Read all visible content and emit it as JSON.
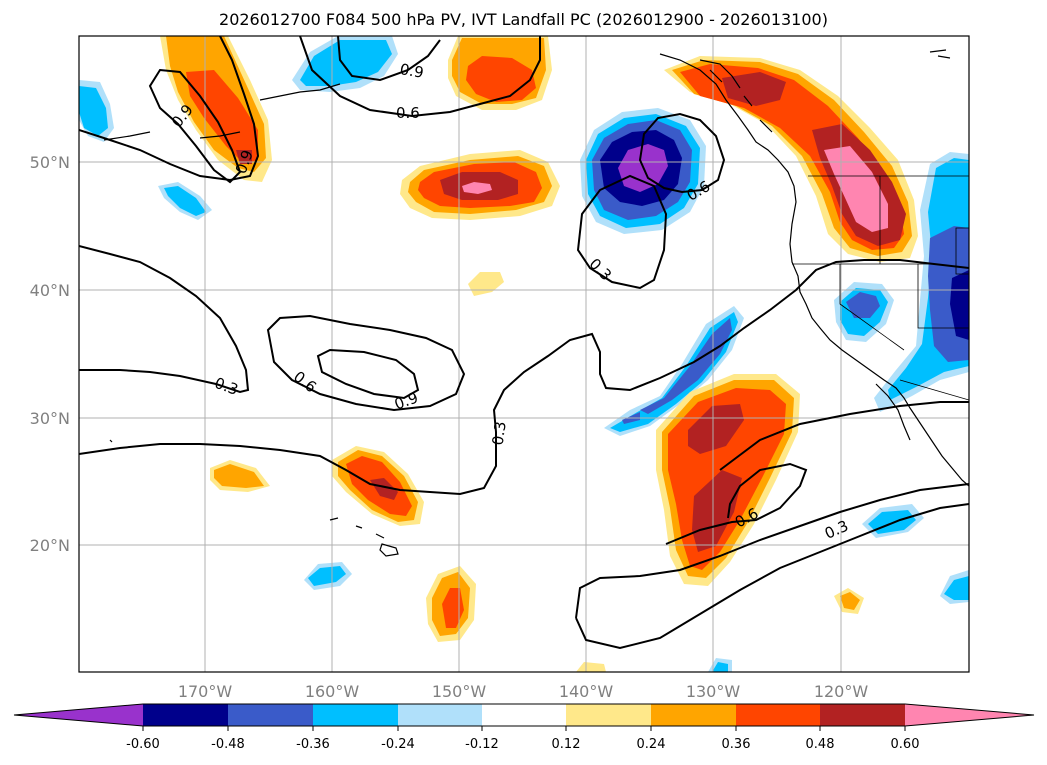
{
  "title": "2026012700 F084 500 hPa PV, IVT Landfall PC (2026012900 - 2026013100)",
  "axes": {
    "lat_ticks": [
      "50°N",
      "40°N",
      "30°N",
      "20°N"
    ],
    "lon_ticks": [
      "170°W",
      "160°W",
      "150°W",
      "140°W",
      "130°W",
      "120°W"
    ]
  },
  "colorbar": {
    "tick_labels": [
      "-0.60",
      "-0.48",
      "-0.36",
      "-0.24",
      "-0.12",
      "0.12",
      "0.24",
      "0.36",
      "0.48",
      "0.60"
    ],
    "colors": [
      "#9932cc",
      "#00008b",
      "#3a5bc9",
      "#00bfff",
      "#b0e0fa",
      "#ffffff",
      "#ffe88a",
      "#ffa500",
      "#ff4500",
      "#b22222",
      "#ff85b0"
    ]
  },
  "contour_labels": [
    "0.9",
    "0.9",
    "0.6",
    "0.9",
    "0.6",
    "0.6",
    "0.3",
    "0.3",
    "0.6",
    "0.9",
    "0.3",
    "0.6",
    "0.3"
  ],
  "colors": {
    "coast": "#000000",
    "grid": "#b0b0b0",
    "contour": "#000000"
  }
}
